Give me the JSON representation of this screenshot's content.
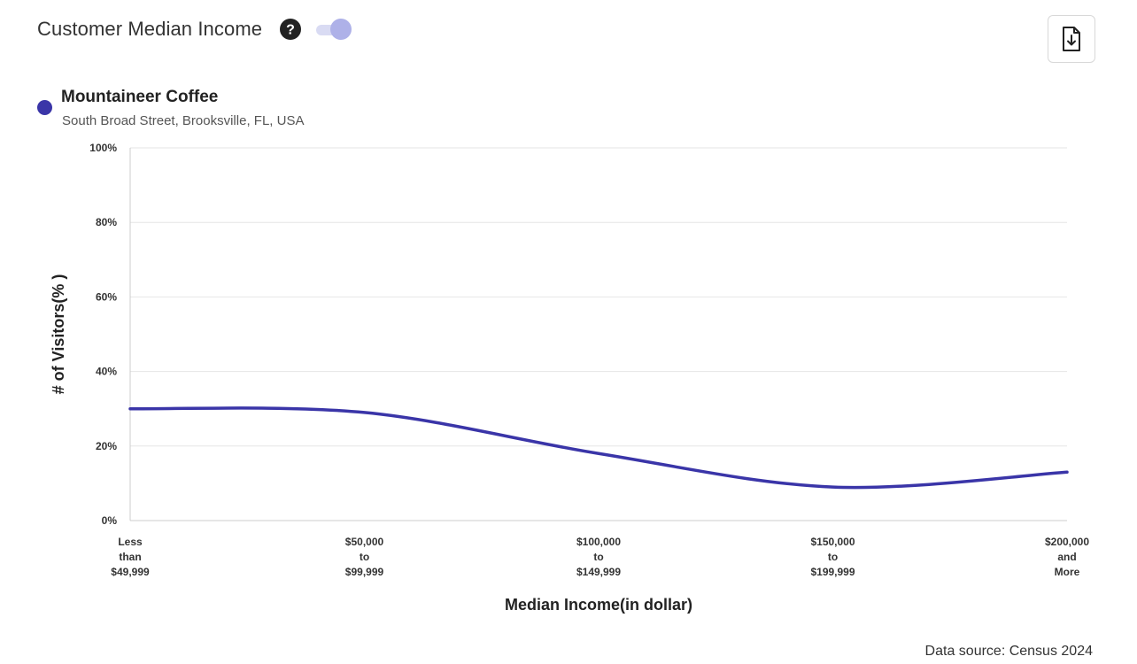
{
  "header": {
    "title": "Customer Median Income",
    "help_icon": "question-circle-icon",
    "toggle_on": true
  },
  "download_icon": "file-download-icon",
  "colors": {
    "series": "#3a35a8",
    "grid": "#e6e6e6",
    "axis": "#cccccc",
    "toggle_track": "#d9dbf3",
    "toggle_knob": "#aeb1e8"
  },
  "legend": {
    "name": "Mountaineer Coffee",
    "address": "South Broad Street, Brooksville, FL, USA"
  },
  "chart_data": {
    "type": "line",
    "xlabel": "Median Income(in dollar)",
    "ylabel": "# of Visitors(% )",
    "ylim": [
      0,
      100
    ],
    "yticks": [
      "0%",
      "20%",
      "40%",
      "60%",
      "80%",
      "100%"
    ],
    "categories": [
      [
        "Less",
        "than",
        "$49,999"
      ],
      [
        "$50,000",
        "to",
        "$99,999"
      ],
      [
        "$100,000",
        "to",
        "$149,999"
      ],
      [
        "$150,000",
        "to",
        "$199,999"
      ],
      [
        "$200,000",
        "and",
        "More"
      ]
    ],
    "series": [
      {
        "name": "Mountaineer Coffee",
        "values": [
          30,
          29,
          18,
          9,
          13
        ]
      }
    ],
    "grid": true,
    "smooth": true
  },
  "footer": {
    "source": "Data source: Census 2024"
  }
}
